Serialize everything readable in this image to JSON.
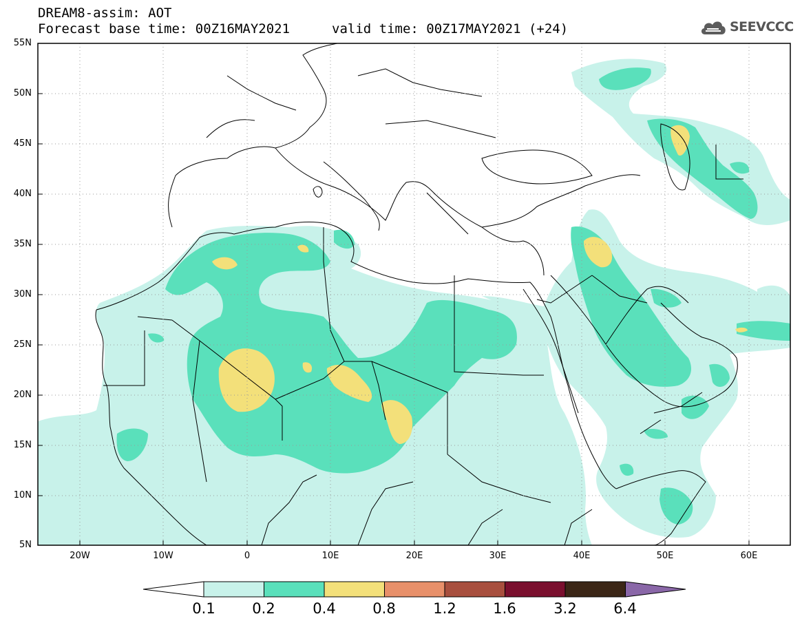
{
  "header": {
    "title_line1": "DREAM8-assim: AOT",
    "title_line2": "Forecast base time: 00Z16MAY2021",
    "valid_time": "valid time: 00Z17MAY2021 (+24)"
  },
  "logo": {
    "text": "SEEVCCC",
    "icon": "cloud-logo-icon"
  },
  "axes": {
    "lat_labels": [
      "55N",
      "50N",
      "45N",
      "40N",
      "35N",
      "30N",
      "25N",
      "20N",
      "15N",
      "10N",
      "5N"
    ],
    "lon_labels": [
      "20W",
      "10W",
      "0",
      "10E",
      "20E",
      "30E",
      "40E",
      "50E",
      "60E"
    ]
  },
  "colorbar": {
    "labels": [
      "0.1",
      "0.2",
      "0.4",
      "0.8",
      "1.2",
      "1.6",
      "3.2",
      "6.4"
    ],
    "colors": [
      "#ffffff",
      "#c8f2ea",
      "#5ae0bb",
      "#f3e07a",
      "#e8906a",
      "#a84f3e",
      "#7a0f2e",
      "#3b2616",
      "#8a67a8"
    ]
  },
  "fields": {
    "level1_color": "#c8f2ea",
    "level2_color": "#5ae0bb",
    "level3_color": "#f3e07a",
    "coast_color": "#000000"
  }
}
